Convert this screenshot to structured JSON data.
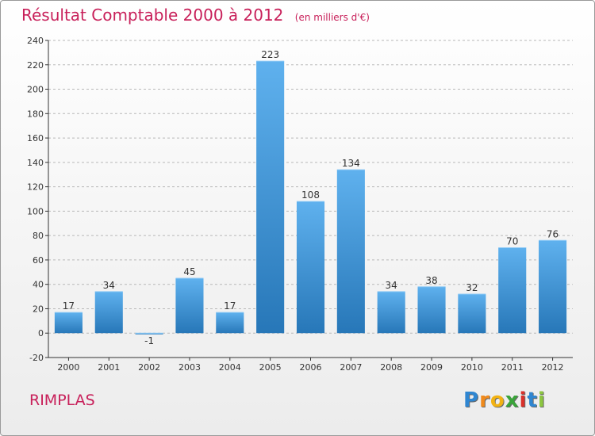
{
  "chart_data": {
    "type": "bar",
    "title": "Résultat Comptable 2000 à 2012",
    "subtitle": "(en milliers d'€)",
    "categories": [
      "2000",
      "2001",
      "2002",
      "2003",
      "2004",
      "2005",
      "2006",
      "2007",
      "2008",
      "2009",
      "2010",
      "2011",
      "2012"
    ],
    "values": [
      17,
      34,
      -1,
      45,
      17,
      223,
      108,
      134,
      34,
      38,
      32,
      70,
      76
    ],
    "value_labels": [
      "17",
      "34",
      "-1",
      "45",
      "17",
      "223",
      "108",
      "134",
      "34",
      "38",
      "32",
      "70",
      "76"
    ],
    "ylim": [
      -20,
      240
    ],
    "yticks": [
      -20,
      0,
      20,
      40,
      60,
      80,
      100,
      120,
      140,
      160,
      180,
      200,
      220,
      240
    ],
    "xlabel": "",
    "ylabel": "",
    "grid": "dashed-horizontal",
    "bar_color": "#4aa3e3",
    "bar_color_dark": "#2777b8"
  },
  "place_name": "RIMPLAS",
  "logo": {
    "letters": [
      "P",
      "r",
      "o",
      "x",
      "i",
      "t",
      "i"
    ],
    "colors": [
      "#2f86d1",
      "#f08a1c",
      "#f2b213",
      "#3aa43a",
      "#d9312b",
      "#2f86d1",
      "#8cc63f"
    ]
  },
  "colors": {
    "title": "#c8205a",
    "axis": "#333333",
    "grid": "#b8b8b8"
  }
}
